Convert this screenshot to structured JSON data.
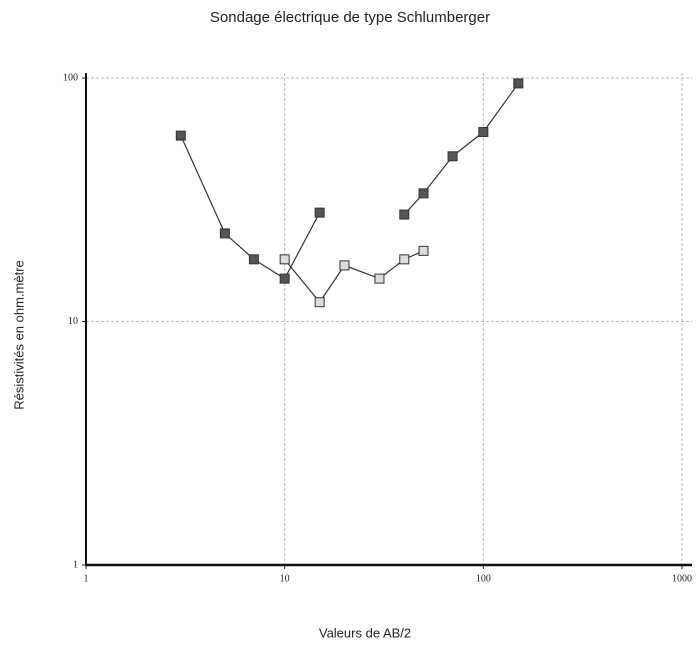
{
  "chart_data": {
    "type": "line",
    "title": "Sondage électrique de type Schlumberger",
    "x_label": "Valeurs de AB/2",
    "y_label": "Résistivités en ohm.mètre",
    "x_scale": "log",
    "y_scale": "log",
    "xlim": [
      1,
      1000
    ],
    "ylim": [
      1,
      100
    ],
    "xticks": [
      1,
      10,
      100,
      1000
    ],
    "yticks": [
      1,
      10,
      100
    ],
    "grid": true,
    "line_color": "#333333",
    "series": [
      {
        "color": "#555555",
        "x": [
          3,
          5,
          7,
          10,
          15
        ],
        "values": [
          58,
          23,
          18,
          15,
          28
        ]
      },
      {
        "color": "#dddddd",
        "x": [
          10,
          15,
          20,
          30,
          40,
          50
        ],
        "values": [
          18,
          12,
          17,
          15,
          18,
          19.5
        ]
      },
      {
        "color": "#555555",
        "x": [
          40,
          50,
          70,
          100,
          150
        ],
        "values": [
          27.5,
          33.6,
          47.7,
          60,
          95
        ]
      }
    ]
  }
}
